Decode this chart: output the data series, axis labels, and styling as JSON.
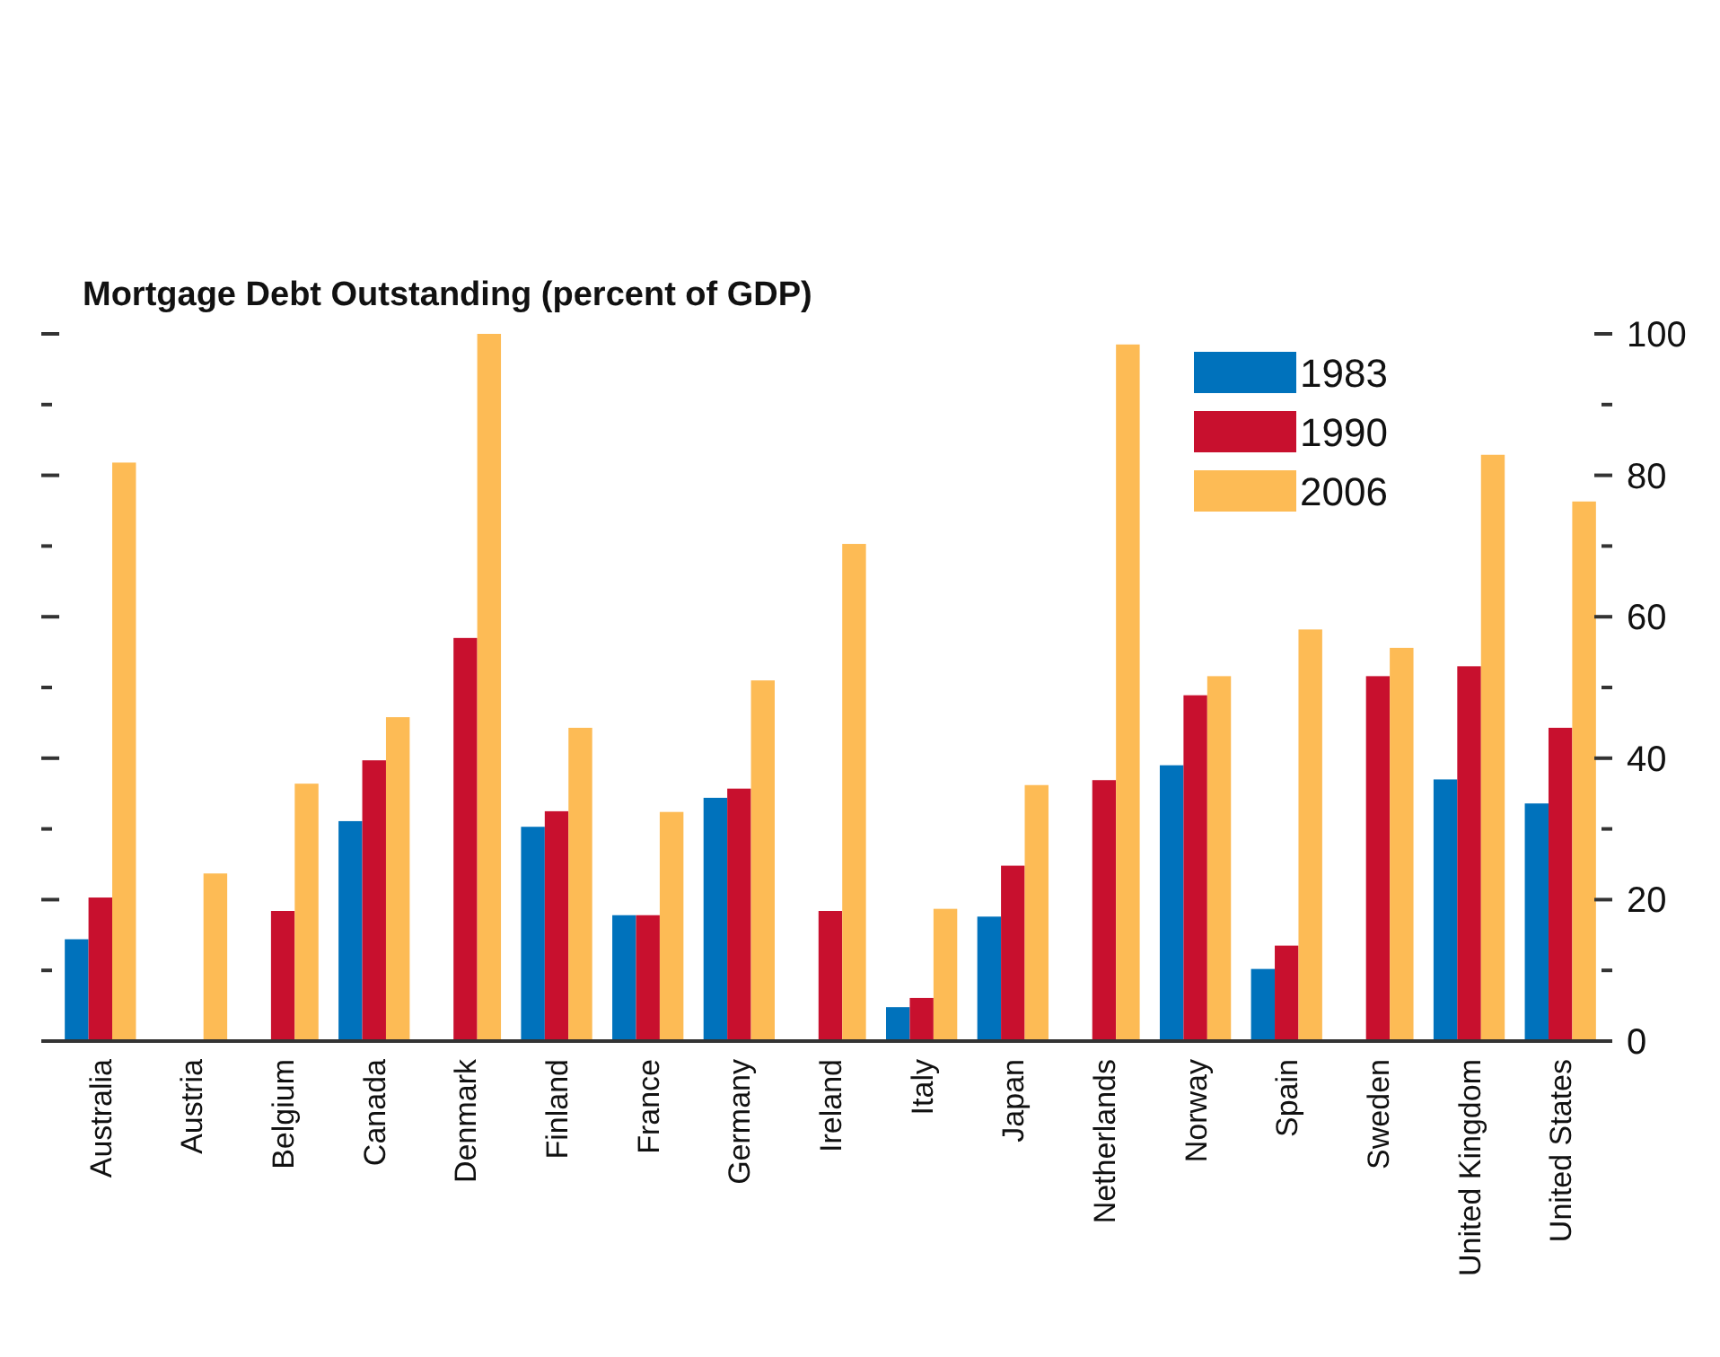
{
  "chart_data": {
    "type": "bar",
    "title": "Mortgage Debt Outstanding (percent of GDP)",
    "categories": [
      "Australia",
      "Austria",
      "Belgium",
      "Canada",
      "Denmark",
      "Finland",
      "France",
      "Germany",
      "Ireland",
      "Italy",
      "Japan",
      "Netherlands",
      "Norway",
      "Spain",
      "Sweden",
      "United Kingdom",
      "United States"
    ],
    "series": [
      {
        "name": "1983",
        "color": "#0072bc",
        "values": [
          14.4,
          null,
          null,
          31.1,
          null,
          30.3,
          17.8,
          34.4,
          null,
          4.8,
          17.6,
          null,
          39.0,
          10.2,
          null,
          37.0,
          33.6
        ]
      },
      {
        "name": "1990",
        "color": "#c8102e",
        "values": [
          20.3,
          null,
          18.4,
          39.7,
          57.0,
          32.5,
          17.8,
          35.7,
          18.4,
          6.1,
          24.8,
          36.9,
          48.9,
          13.5,
          51.6,
          53.0,
          44.3
        ]
      },
      {
        "name": "2006",
        "color": "#fdbb55",
        "values": [
          81.8,
          23.7,
          36.4,
          45.8,
          100,
          44.3,
          32.4,
          51.0,
          70.3,
          18.7,
          36.2,
          98.5,
          51.6,
          58.2,
          55.6,
          82.9,
          76.3
        ]
      }
    ],
    "ylim": [
      0,
      100
    ],
    "yticks": [
      0,
      {
        "value": 10,
        "label": null
      },
      20,
      {
        "value": 30,
        "label": null
      },
      40,
      {
        "value": 50,
        "label": null
      },
      60,
      {
        "value": 70,
        "label": null
      },
      80,
      {
        "value": 90,
        "label": null
      },
      100
    ],
    "grid": false,
    "legend": "top right"
  }
}
